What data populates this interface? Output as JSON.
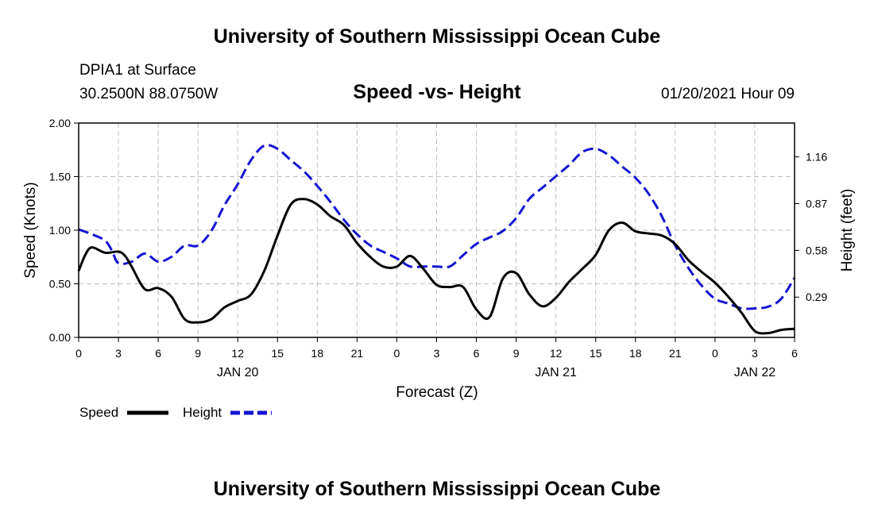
{
  "header": {
    "top_title": "University of Southern Mississippi Ocean Cube",
    "station": "DPIA1 at Surface",
    "coords": "30.2500N 88.0750W",
    "timestamp": "01/20/2021 Hour 09"
  },
  "footer": {
    "title": "University of Southern Mississippi Ocean Cube"
  },
  "chart_data": {
    "type": "line",
    "title": "Speed -vs- Height",
    "xlabel": "Forecast (Z)",
    "ylabel": "Speed (Knots)",
    "y2label": "Height (feet)",
    "x_unit": "hours since 2021-01-20 00Z",
    "xlim": [
      0,
      54
    ],
    "ylim": [
      0,
      2
    ],
    "y2lim": [
      0.04,
      1.37
    ],
    "x_ticks": [
      0,
      3,
      6,
      9,
      12,
      15,
      18,
      21,
      24,
      27,
      30,
      33,
      36,
      39,
      42,
      45,
      48,
      51,
      54
    ],
    "x_tick_labels": [
      "0",
      "3",
      "6",
      "9",
      "12",
      "15",
      "18",
      "21",
      "0",
      "3",
      "6",
      "9",
      "12",
      "15",
      "18",
      "21",
      "0",
      "3",
      "6"
    ],
    "y_ticks": [
      0,
      0.5,
      1.0,
      1.5,
      2.0
    ],
    "y_tick_labels": [
      "0.00",
      "0.50",
      "1.00",
      "1.50",
      "2.00"
    ],
    "y2_ticks": [
      0.29,
      0.58,
      0.87,
      1.16
    ],
    "y2_tick_labels": [
      "0.29",
      "0.58",
      "0.87",
      "1.16"
    ],
    "day_labels": [
      {
        "x": 12,
        "label": "JAN 20"
      },
      {
        "x": 36,
        "label": "JAN 21"
      },
      {
        "x": 51,
        "label": "JAN 22"
      }
    ],
    "grid": true,
    "legend_position": "bottom-left",
    "series": [
      {
        "name": "Speed",
        "axis": "left",
        "color": "#000000",
        "style": "solid",
        "x": [
          0,
          0.5,
          1,
          2,
          3,
          3.5,
          4,
          5,
          6,
          7,
          8,
          9,
          10,
          11,
          12,
          13,
          14,
          15,
          16,
          17,
          18,
          19,
          20,
          21,
          22,
          23,
          24,
          25,
          26,
          27,
          28,
          29,
          30,
          31,
          32,
          33,
          34,
          35,
          36,
          37,
          38,
          39,
          40,
          41,
          42,
          43,
          44,
          45,
          46,
          47,
          48,
          49,
          50,
          51,
          52,
          53,
          54
        ],
        "values": [
          0.62,
          0.77,
          0.84,
          0.79,
          0.8,
          0.76,
          0.66,
          0.45,
          0.46,
          0.38,
          0.17,
          0.14,
          0.17,
          0.28,
          0.34,
          0.4,
          0.62,
          0.95,
          1.24,
          1.29,
          1.24,
          1.13,
          1.05,
          0.88,
          0.75,
          0.66,
          0.66,
          0.76,
          0.64,
          0.49,
          0.47,
          0.47,
          0.26,
          0.19,
          0.55,
          0.6,
          0.4,
          0.29,
          0.37,
          0.52,
          0.64,
          0.77,
          1.0,
          1.07,
          0.99,
          0.97,
          0.95,
          0.87,
          0.72,
          0.61,
          0.51,
          0.38,
          0.23,
          0.06,
          0.04,
          0.07,
          0.08
        ]
      },
      {
        "name": "Height",
        "axis": "right",
        "color": "#1414d2",
        "style": "dashed",
        "x": [
          0,
          1,
          2,
          2.5,
          3,
          4,
          5,
          6,
          7,
          8,
          9,
          10,
          11,
          12,
          13,
          14,
          15,
          16,
          17,
          18,
          19,
          20,
          21,
          22,
          23,
          24,
          25,
          26,
          27,
          28,
          29,
          30,
          31,
          32,
          33,
          34,
          35,
          36,
          37,
          38,
          39,
          40,
          41,
          42,
          43,
          44,
          45,
          46,
          47,
          48,
          49,
          50,
          51,
          52,
          53,
          54
        ],
        "values": [
          0.71,
          0.68,
          0.64,
          0.58,
          0.5,
          0.51,
          0.56,
          0.51,
          0.54,
          0.61,
          0.61,
          0.7,
          0.86,
          0.99,
          1.14,
          1.23,
          1.21,
          1.14,
          1.07,
          0.98,
          0.88,
          0.77,
          0.68,
          0.61,
          0.57,
          0.53,
          0.48,
          0.48,
          0.48,
          0.48,
          0.55,
          0.62,
          0.66,
          0.7,
          0.78,
          0.9,
          0.97,
          1.04,
          1.11,
          1.19,
          1.21,
          1.17,
          1.1,
          1.03,
          0.93,
          0.79,
          0.61,
          0.47,
          0.36,
          0.28,
          0.25,
          0.22,
          0.22,
          0.23,
          0.28,
          0.41
        ]
      }
    ]
  }
}
